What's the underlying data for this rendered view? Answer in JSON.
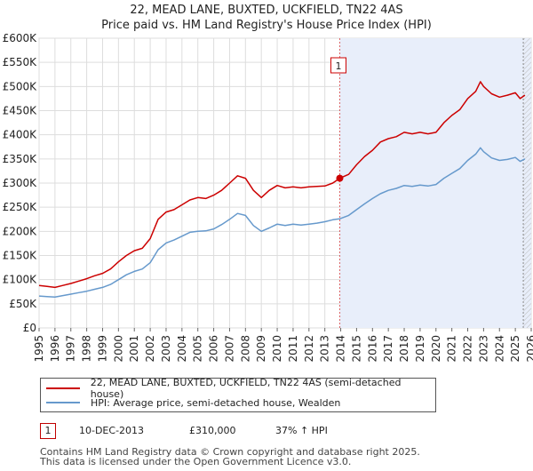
{
  "chart_data": {
    "type": "line",
    "title": "22, MEAD LANE, BUXTED, UCKFIELD, TN22 4AS",
    "subtitle": "Price paid vs. HM Land Registry's House Price Index (HPI)",
    "xlabel": "",
    "ylabel": "",
    "xlim": [
      1995,
      2026
    ],
    "ylim": [
      0,
      600000
    ],
    "x_ticks": [
      "1995",
      "1996",
      "1997",
      "1998",
      "1999",
      "2000",
      "2001",
      "2002",
      "2003",
      "2004",
      "2005",
      "2006",
      "2007",
      "2008",
      "2009",
      "2010",
      "2011",
      "2012",
      "2013",
      "2014",
      "2015",
      "2016",
      "2017",
      "2018",
      "2019",
      "2020",
      "2021",
      "2022",
      "2023",
      "2024",
      "2025",
      "2026"
    ],
    "y_ticks": [
      {
        "value": 0,
        "label": "£0"
      },
      {
        "value": 50000,
        "label": "£50K"
      },
      {
        "value": 100000,
        "label": "£100K"
      },
      {
        "value": 150000,
        "label": "£150K"
      },
      {
        "value": 200000,
        "label": "£200K"
      },
      {
        "value": 250000,
        "label": "£250K"
      },
      {
        "value": 300000,
        "label": "£300K"
      },
      {
        "value": 350000,
        "label": "£350K"
      },
      {
        "value": 400000,
        "label": "£400K"
      },
      {
        "value": 450000,
        "label": "£450K"
      },
      {
        "value": 500000,
        "label": "£500K"
      },
      {
        "value": 550000,
        "label": "£550K"
      },
      {
        "value": 600000,
        "label": "£600K"
      }
    ],
    "grid": true,
    "series": [
      {
        "name": "22, MEAD LANE, BUXTED, UCKFIELD, TN22 4AS (semi-detached house)",
        "color": "#cc0000",
        "x": [
          1995,
          1995.5,
          1996,
          1996.5,
          1997,
          1997.5,
          1998,
          1998.5,
          1999,
          1999.5,
          2000,
          2000.5,
          2001,
          2001.5,
          2002,
          2002.5,
          2003,
          2003.5,
          2004,
          2004.5,
          2005,
          2005.5,
          2006,
          2006.5,
          2007,
          2007.5,
          2008,
          2008.5,
          2009,
          2009.5,
          2010,
          2010.5,
          2011,
          2011.5,
          2012,
          2012.5,
          2013,
          2013.5,
          2013.94,
          2014.5,
          2015,
          2015.5,
          2016,
          2016.5,
          2017,
          2017.5,
          2018,
          2018.5,
          2019,
          2019.5,
          2020,
          2020.5,
          2021,
          2021.5,
          2022,
          2022.5,
          2022.8,
          2023,
          2023.5,
          2024,
          2024.5,
          2025,
          2025.3,
          2025.6
        ],
        "values": [
          88000,
          86000,
          84000,
          88000,
          92000,
          97000,
          102000,
          108000,
          113000,
          122000,
          137000,
          150000,
          160000,
          165000,
          185000,
          225000,
          240000,
          245000,
          255000,
          265000,
          270000,
          268000,
          275000,
          285000,
          300000,
          315000,
          310000,
          285000,
          270000,
          285000,
          295000,
          290000,
          292000,
          290000,
          292000,
          293000,
          294000,
          300000,
          310000,
          318000,
          338000,
          355000,
          368000,
          385000,
          392000,
          396000,
          405000,
          402000,
          405000,
          402000,
          405000,
          425000,
          440000,
          452000,
          475000,
          490000,
          510000,
          500000,
          485000,
          478000,
          482000,
          487000,
          475000,
          482000
        ]
      },
      {
        "name": "HPI: Average price, semi-detached house, Wealden",
        "color": "#6699cc",
        "x": [
          1995,
          1995.5,
          1996,
          1996.5,
          1997,
          1997.5,
          1998,
          1998.5,
          1999,
          1999.5,
          2000,
          2000.5,
          2001,
          2001.5,
          2002,
          2002.5,
          2003,
          2003.5,
          2004,
          2004.5,
          2005,
          2005.5,
          2006,
          2006.5,
          2007,
          2007.5,
          2008,
          2008.5,
          2009,
          2009.5,
          2010,
          2010.5,
          2011,
          2011.5,
          2012,
          2012.5,
          2013,
          2013.5,
          2013.94,
          2014.5,
          2015,
          2015.5,
          2016,
          2016.5,
          2017,
          2017.5,
          2018,
          2018.5,
          2019,
          2019.5,
          2020,
          2020.5,
          2021,
          2021.5,
          2022,
          2022.5,
          2022.8,
          2023,
          2023.5,
          2024,
          2024.5,
          2025,
          2025.3,
          2025.6
        ],
        "values": [
          66000,
          65000,
          64000,
          67000,
          70000,
          73000,
          76000,
          80000,
          84000,
          90000,
          100000,
          110000,
          117000,
          122000,
          135000,
          162000,
          176000,
          182000,
          190000,
          198000,
          200000,
          201000,
          205000,
          214000,
          225000,
          237000,
          233000,
          212000,
          200000,
          207000,
          215000,
          212000,
          215000,
          213000,
          215000,
          217000,
          220000,
          224000,
          226000,
          233000,
          245000,
          257000,
          268000,
          278000,
          285000,
          289000,
          295000,
          293000,
          296000,
          294000,
          297000,
          310000,
          320000,
          330000,
          347000,
          360000,
          373000,
          365000,
          352000,
          347000,
          349000,
          353000,
          345000,
          350000
        ]
      }
    ],
    "annotations": [
      {
        "label": "1",
        "x": 2013.94,
        "y": 310000,
        "type": "sale-marker"
      },
      {
        "label": "",
        "x": 2025.5,
        "type": "future-boundary"
      }
    ],
    "legend_position": "bottom"
  },
  "legend": {
    "items": [
      {
        "label": "22, MEAD LANE, BUXTED, UCKFIELD, TN22 4AS (semi-detached house)",
        "color": "#cc0000"
      },
      {
        "label": "HPI: Average price, semi-detached house, Wealden",
        "color": "#6699cc"
      }
    ]
  },
  "sale": {
    "marker": "1",
    "date": "10-DEC-2013",
    "price": "£310,000",
    "hpi_change": "37% ↑ HPI"
  },
  "footer": {
    "line1": "Contains HM Land Registry data © Crown copyright and database right 2025.",
    "line2": "This data is licensed under the Open Government Licence v3.0."
  },
  "colors": {
    "property_line": "#cc0000",
    "hpi_line": "#6699cc",
    "shaded_region": "#e8eefa",
    "grid": "#dddddd"
  }
}
